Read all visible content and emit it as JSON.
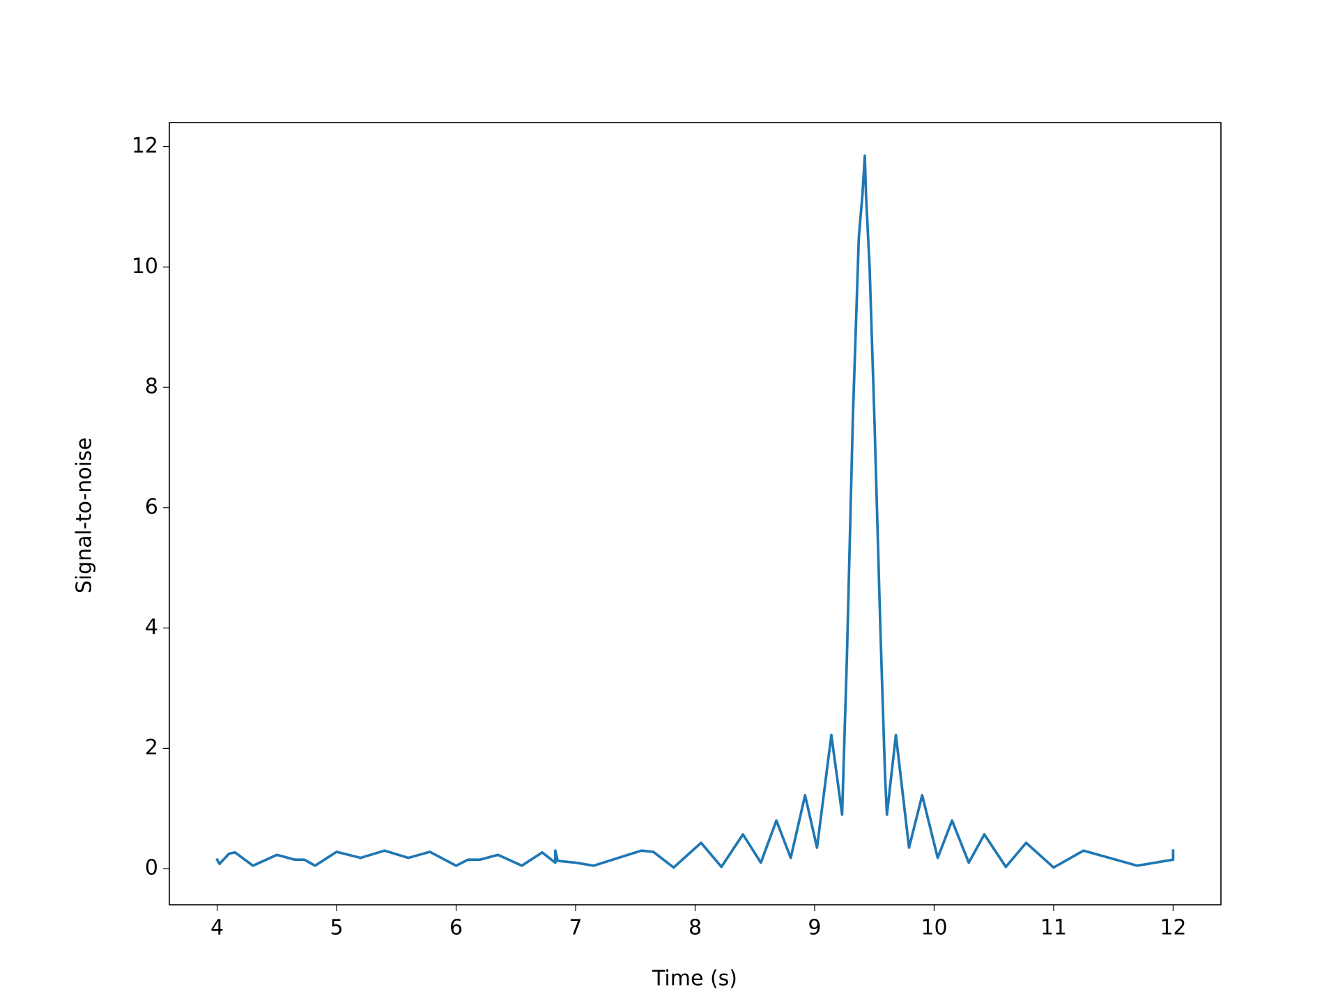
{
  "chart_data": {
    "type": "line",
    "xlabel": "Time (s)",
    "ylabel": "Signal-to-noise",
    "x": [
      4.0,
      4.02,
      4.1,
      4.15,
      4.3,
      4.5,
      4.65,
      4.73,
      4.82,
      5.0,
      5.2,
      5.4,
      5.6,
      5.78,
      6.0,
      6.1,
      6.2,
      6.35,
      6.55,
      6.72,
      6.83,
      6.83,
      6.85,
      7.0,
      7.15,
      7.55,
      7.65,
      7.82,
      8.05,
      8.22,
      8.4,
      8.55,
      8.68,
      8.8,
      8.92,
      9.02,
      9.14,
      9.23,
      9.27,
      9.32,
      9.37,
      9.4,
      9.42,
      9.43,
      9.46,
      9.5,
      9.55,
      9.59,
      9.605,
      9.68,
      9.79,
      9.9,
      10.03,
      10.15,
      10.29,
      10.42,
      10.6,
      10.77,
      11.0,
      11.25,
      11.7,
      12.0,
      12.0
    ],
    "values": [
      0.15,
      0.08,
      0.25,
      0.27,
      0.05,
      0.23,
      0.15,
      0.15,
      0.05,
      0.28,
      0.18,
      0.3,
      0.18,
      0.28,
      0.05,
      0.15,
      0.15,
      0.23,
      0.05,
      0.27,
      0.1,
      0.3,
      0.13,
      0.1,
      0.05,
      0.3,
      0.28,
      0.02,
      0.43,
      0.03,
      0.57,
      0.1,
      0.8,
      0.18,
      1.22,
      0.35,
      2.22,
      0.9,
      3.5,
      7.5,
      10.5,
      11.2,
      11.85,
      11.2,
      10.0,
      7.5,
      4.0,
      1.5,
      0.9,
      2.22,
      0.35,
      1.22,
      0.18,
      0.8,
      0.1,
      0.57,
      0.03,
      0.43,
      0.02,
      0.3,
      0.05,
      0.15,
      0.3
    ],
    "color": "#1f77b4",
    "xlim": [
      3.6,
      12.4
    ],
    "xticks": [
      4,
      5,
      6,
      7,
      8,
      9,
      10,
      11,
      12
    ],
    "ylim": [
      -0.6,
      12.4
    ],
    "yticks": [
      0,
      2,
      4,
      6,
      8,
      10,
      12
    ]
  }
}
